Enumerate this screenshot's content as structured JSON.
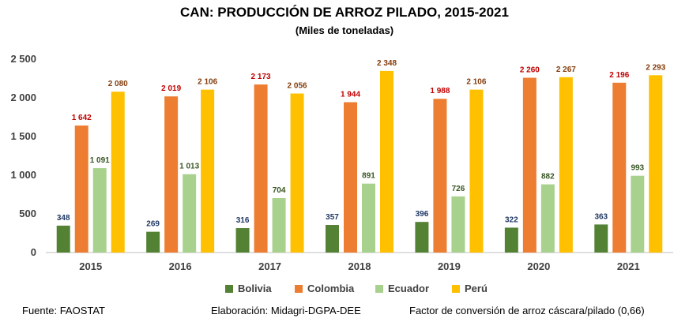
{
  "chart_data": {
    "type": "bar",
    "title": "CAN: PRODUCCIÓN DE ARROZ PILADO, 2015-2021",
    "subtitle": "(Miles de toneladas)",
    "categories": [
      "2015",
      "2016",
      "2017",
      "2018",
      "2019",
      "2020",
      "2021"
    ],
    "ylim": [
      0,
      2500
    ],
    "yticks": [
      0,
      500,
      1000,
      1500,
      2000,
      2500
    ],
    "ytick_labels": [
      "0",
      "500",
      "1 000",
      "1 500",
      "2 000",
      "2 500"
    ],
    "grid": false,
    "legend_position": "bottom",
    "series": [
      {
        "name": "Bolivia",
        "color": "#548235",
        "label_color": "#203864",
        "values": [
          348,
          269,
          316,
          357,
          396,
          322,
          363
        ],
        "labels": [
          "348",
          "269",
          "316",
          "357",
          "396",
          "322",
          "363"
        ]
      },
      {
        "name": "Colombia",
        "color": "#ED7D31",
        "label_color": "#C00000",
        "values": [
          1642,
          2019,
          2173,
          1944,
          1988,
          2260,
          2196
        ],
        "labels": [
          "1 642",
          "2 019",
          "2 173",
          "1 944",
          "1 988",
          "2 260",
          "2 196"
        ]
      },
      {
        "name": "Ecuador",
        "color": "#A9D18E",
        "label_color": "#375623",
        "values": [
          1091,
          1013,
          704,
          891,
          726,
          882,
          993
        ],
        "labels": [
          "1 091",
          "1 013",
          "704",
          "891",
          "726",
          "882",
          "993"
        ]
      },
      {
        "name": "Perú",
        "color": "#FFC000",
        "label_color": "#843C0C",
        "values": [
          2080,
          2106,
          2056,
          2348,
          2106,
          2267,
          2293
        ],
        "labels": [
          "2 080",
          "2 106",
          "2 056",
          "2 348",
          "2 106",
          "2 267",
          "2 293"
        ]
      }
    ]
  },
  "footer": {
    "source": "Fuente: FAOSTAT",
    "elaboration": "Elaboración: Midagri-DGPA-DEE",
    "note": "Factor de conversión de arroz cáscara/pilado (0,66)"
  }
}
